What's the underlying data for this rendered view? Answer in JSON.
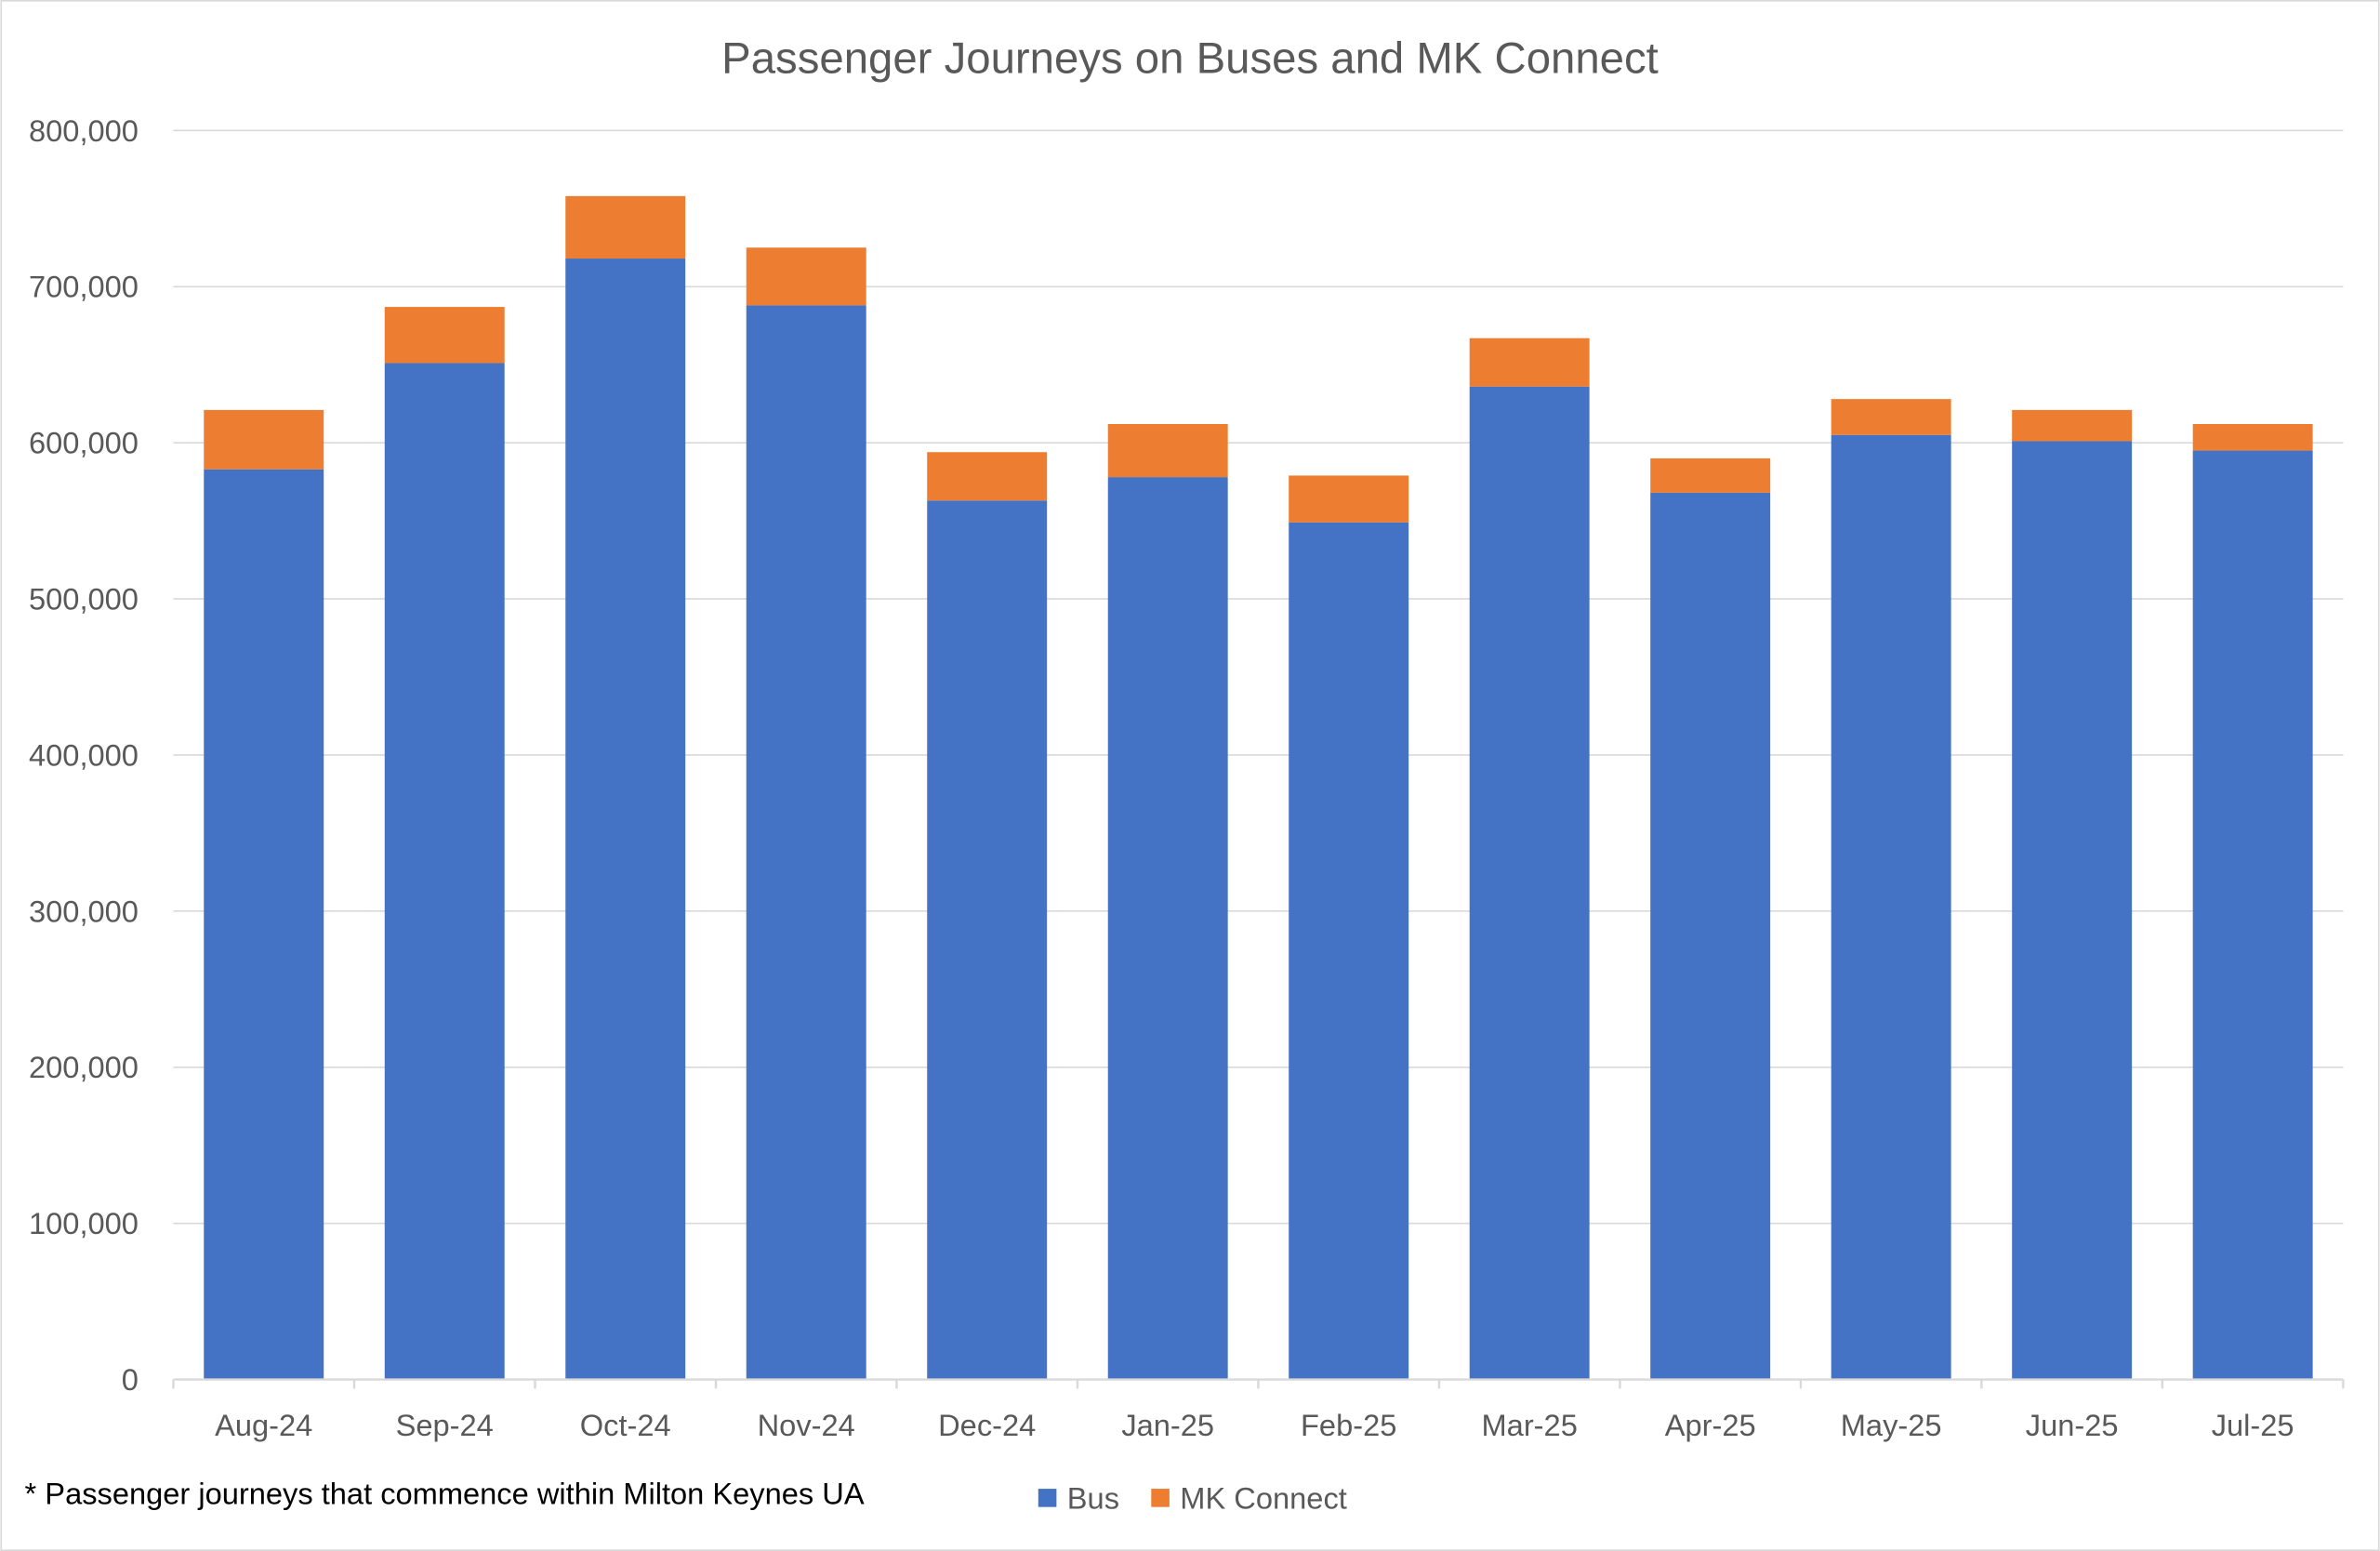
{
  "chart_data": {
    "type": "bar",
    "stacked": true,
    "title": "Passenger Journeys on Buses and MK Connect",
    "xlabel": "",
    "ylabel": "",
    "ylim": [
      0,
      800000
    ],
    "yticks": [
      "0",
      "100,000",
      "200,000",
      "300,000",
      "400,000",
      "500,000",
      "600,000",
      "700,000",
      "800,000"
    ],
    "ytick_values": [
      0,
      100000,
      200000,
      300000,
      400000,
      500000,
      600000,
      700000,
      800000
    ],
    "grid": true,
    "legend_position": "bottom",
    "categories": [
      "Aug-24",
      "Sep-24",
      "Oct-24",
      "Nov-24",
      "Dec-24",
      "Jan-25",
      "Feb-25",
      "Mar-25",
      "Apr-25",
      "May-25",
      "Jun-25",
      "Jul-25"
    ],
    "series": [
      {
        "name": "Bus",
        "color": "#4472C4",
        "values": [
          583000,
          651000,
          718000,
          688000,
          563000,
          578000,
          549000,
          636000,
          568000,
          605000,
          601000,
          595000
        ]
      },
      {
        "name": "MK Connect",
        "color": "#ED7D31",
        "values": [
          38000,
          36000,
          40000,
          37000,
          31000,
          34000,
          30000,
          31000,
          22000,
          23000,
          20000,
          17000
        ]
      }
    ],
    "footnote": "* Passenger journeys that commence within Milton Keynes UA"
  }
}
